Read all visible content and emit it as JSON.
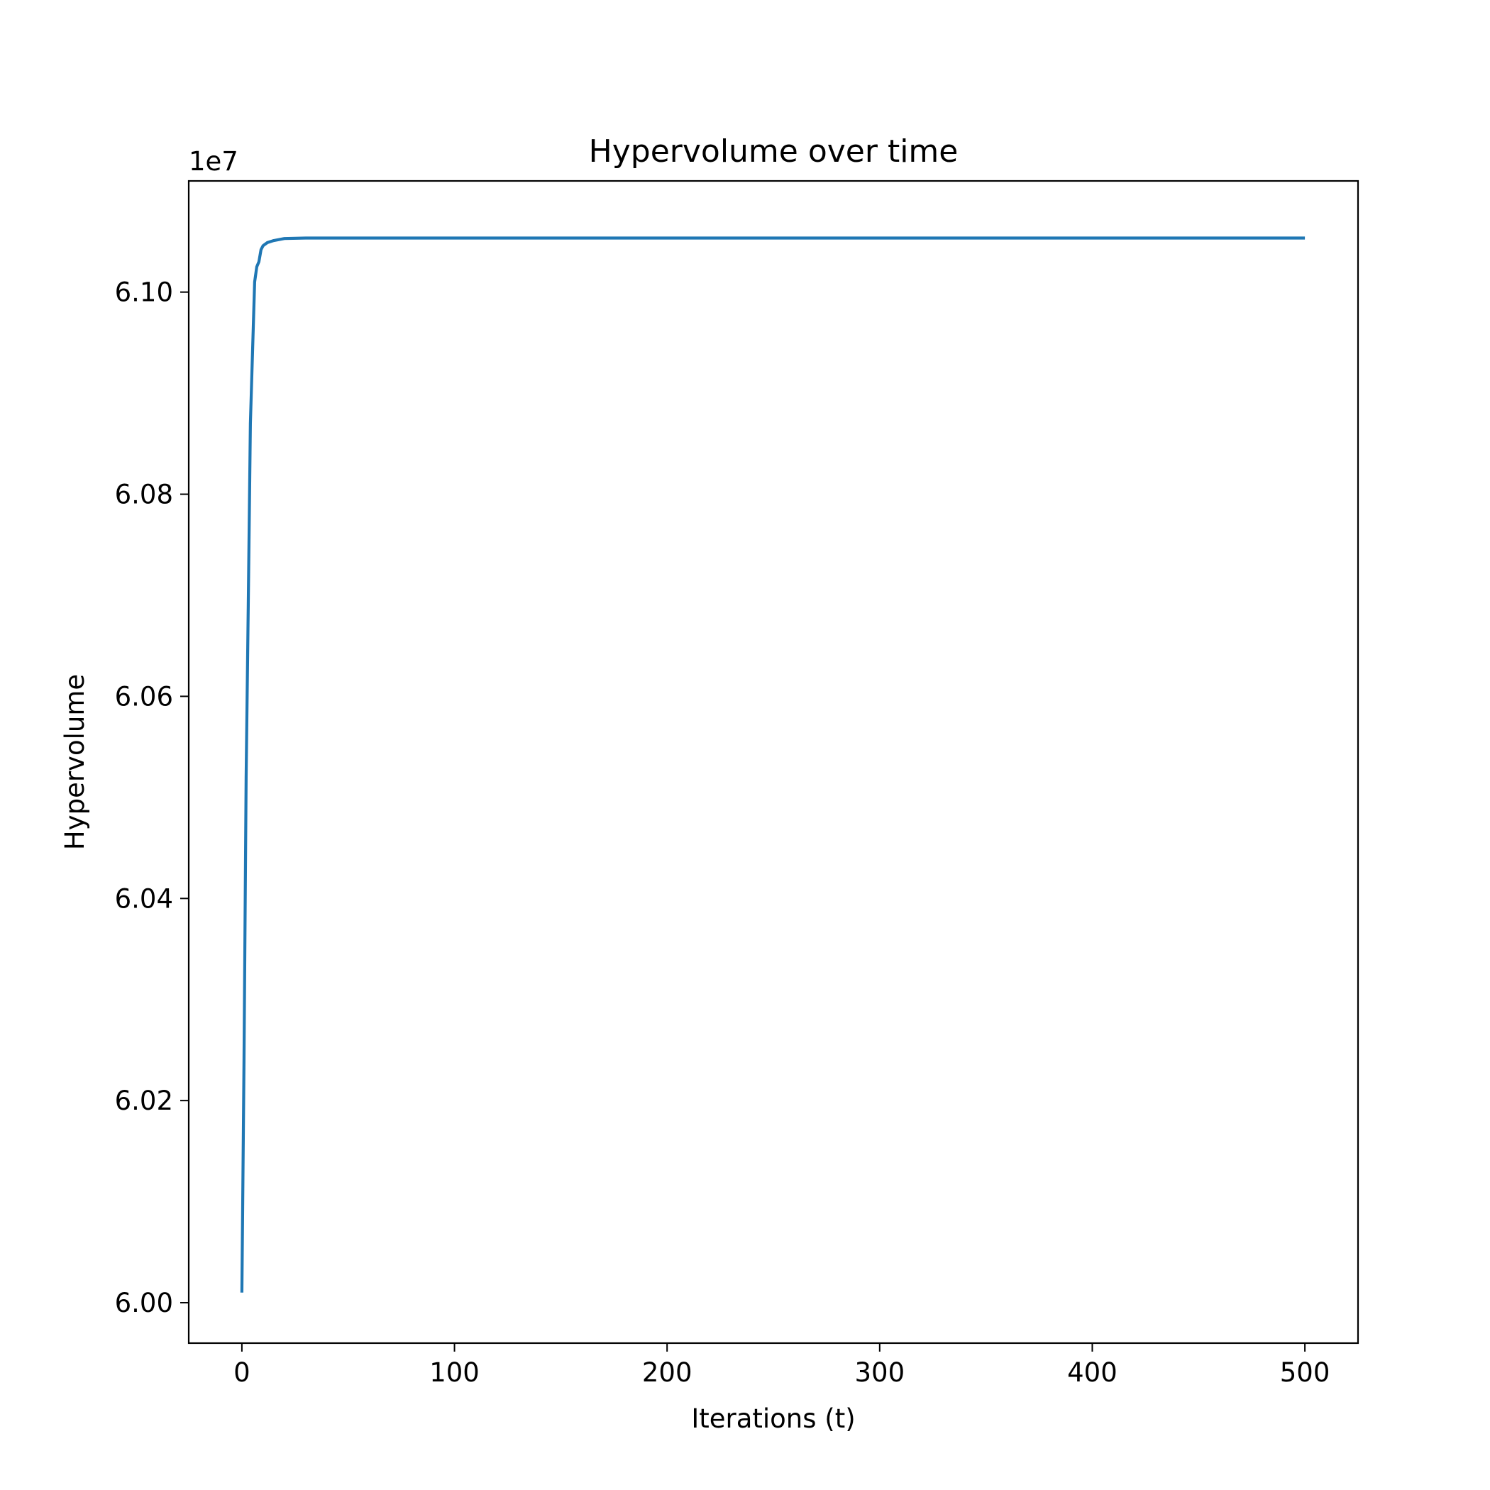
{
  "chart_data": {
    "type": "line",
    "title": "Hypervolume over time",
    "xlabel": "Iterations (t)",
    "ylabel": "Hypervolume",
    "y_offset_label": "1e7",
    "xlim": [
      -25,
      525
    ],
    "ylim": [
      5.996,
      6.111
    ],
    "x_ticks": [
      0,
      100,
      200,
      300,
      400,
      500
    ],
    "x_tick_labels": [
      "0",
      "100",
      "200",
      "300",
      "400",
      "500"
    ],
    "y_ticks": [
      6.0,
      6.02,
      6.04,
      6.06,
      6.08,
      6.1
    ],
    "y_tick_labels": [
      "6.00",
      "6.02",
      "6.04",
      "6.06",
      "6.08",
      "6.10"
    ],
    "grid": false,
    "legend": "none",
    "series": [
      {
        "color": "#1f77b4",
        "x": [
          0,
          1,
          2,
          3,
          4,
          5,
          6,
          7,
          8,
          9,
          10,
          12,
          15,
          20,
          30,
          50,
          100,
          200,
          300,
          400,
          500
        ],
        "y": [
          6.001,
          6.024,
          6.052,
          6.069,
          6.087,
          6.094,
          6.101,
          6.1025,
          6.103,
          6.1042,
          6.1046,
          6.1049,
          6.1051,
          6.1053,
          6.10535,
          6.10535,
          6.10535,
          6.10535,
          6.10535,
          6.10535,
          6.10535
        ]
      }
    ]
  }
}
